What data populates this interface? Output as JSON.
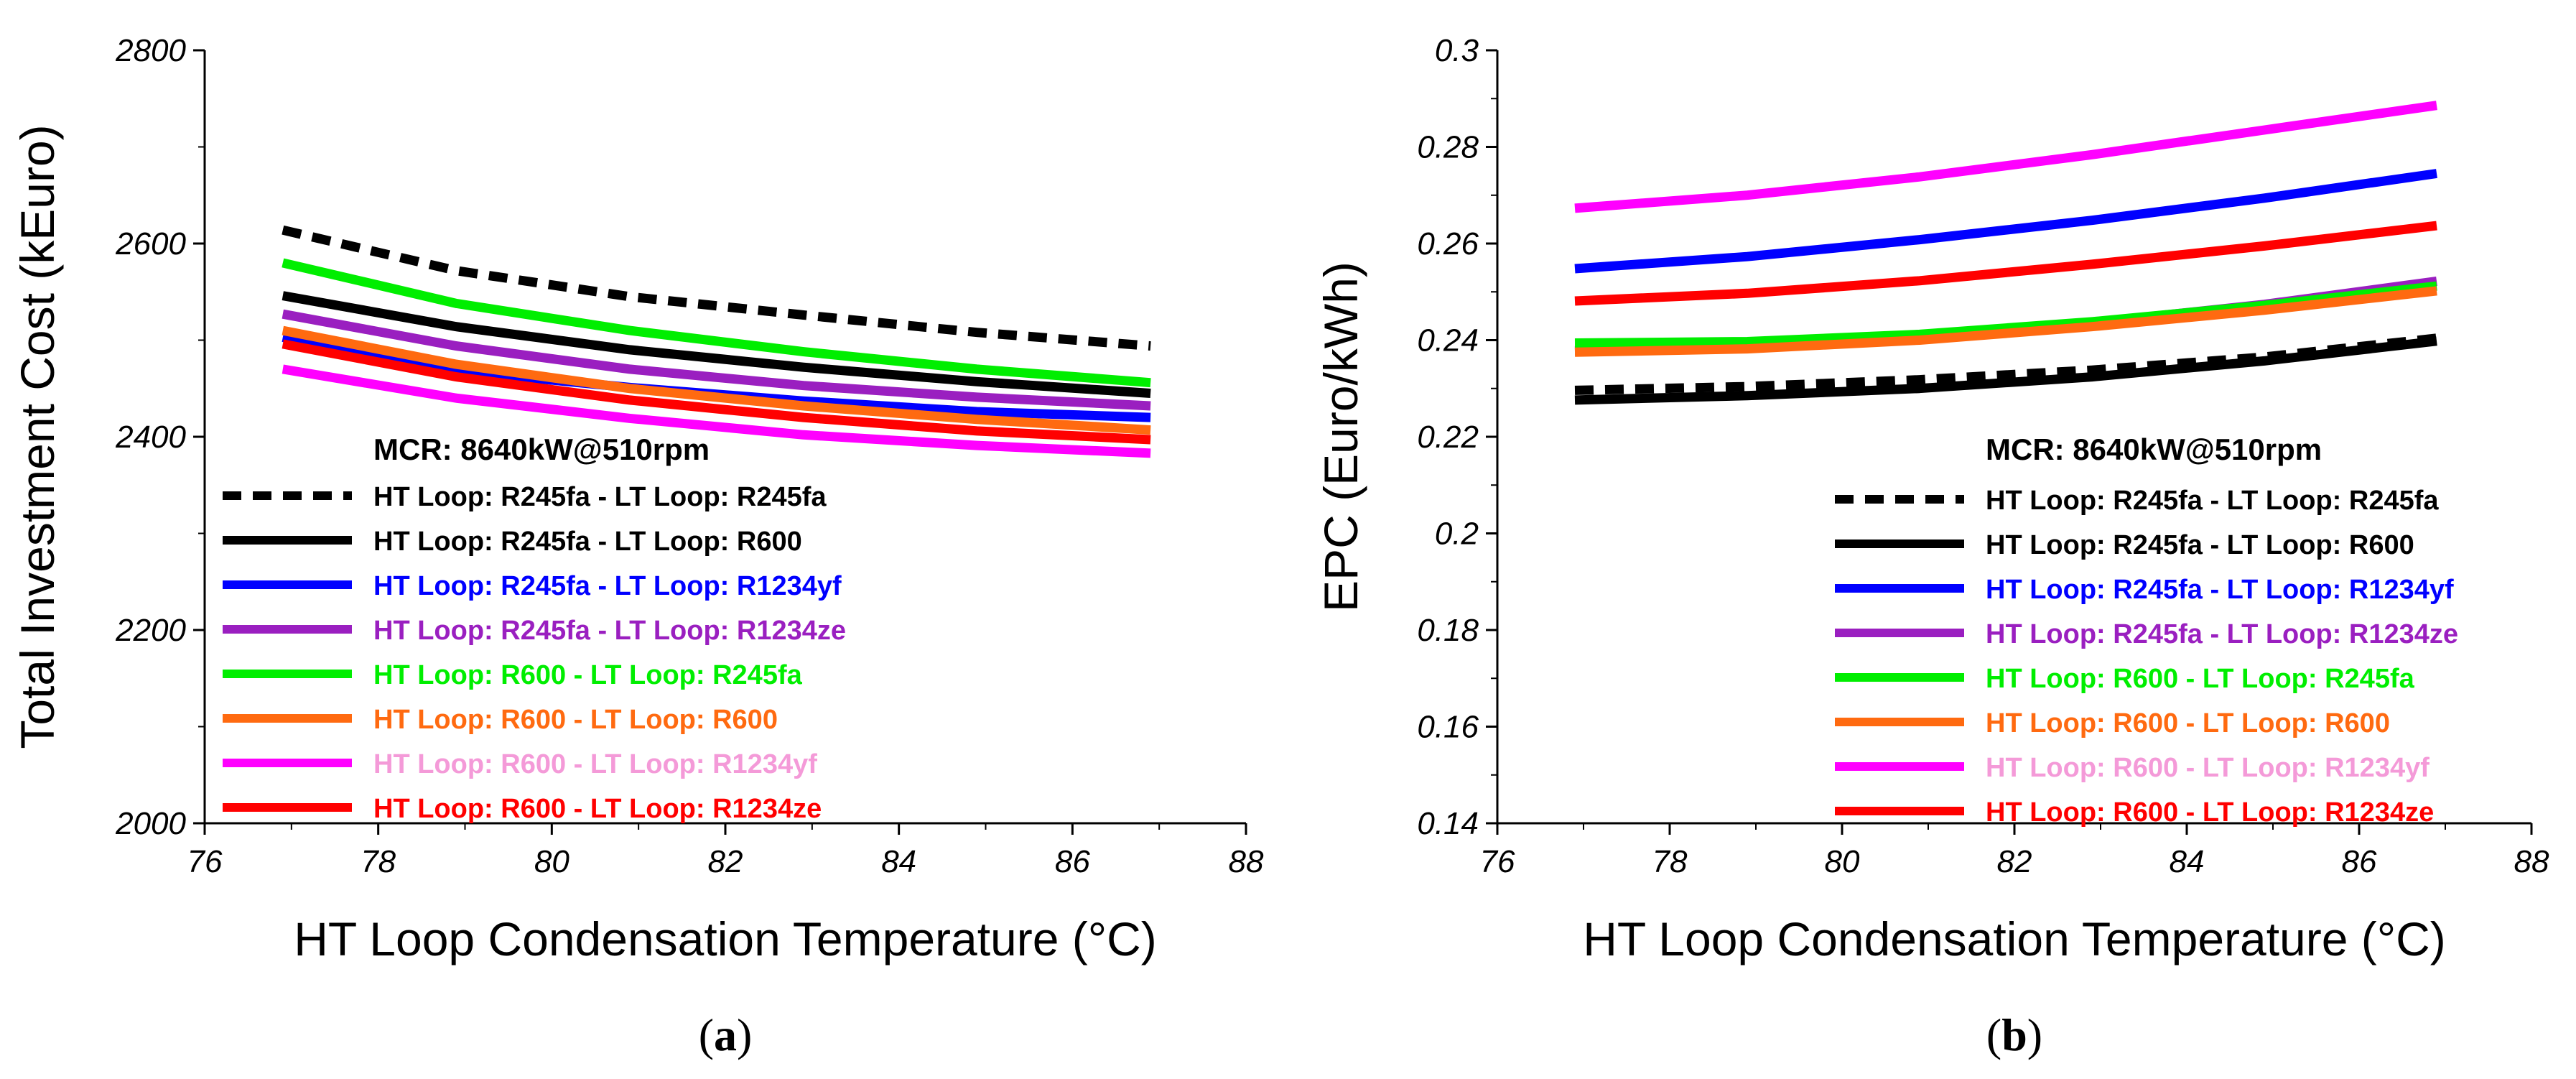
{
  "chart_data": [
    {
      "type": "line",
      "panel_label": "a",
      "xlabel": "HT Loop Condensation Temperature (°C)",
      "ylabel": "Total Investment Cost (kEuro)",
      "xlim": [
        76,
        88
      ],
      "ylim": [
        2000,
        2800
      ],
      "xticks": [
        "76",
        "78",
        "80",
        "82",
        "84",
        "86",
        "88"
      ],
      "yticks": [
        "2000",
        "2200",
        "2400",
        "2600",
        "2800"
      ],
      "x": [
        76.9,
        78.9,
        80.9,
        82.9,
        84.9,
        86.9
      ],
      "legend_title": "MCR: 8640kW@510rpm",
      "legend_position": "bottom-left",
      "series": [
        {
          "name": "HT Loop: R245fa - LT Loop: R245fa",
          "color": "#000000",
          "dash": true,
          "values": [
            2614,
            2572,
            2545,
            2526,
            2508,
            2494
          ]
        },
        {
          "name": "HT Loop: R245fa - LT Loop: R600",
          "color": "#000000",
          "dash": false,
          "values": [
            2546,
            2514,
            2490,
            2472,
            2457,
            2445
          ]
        },
        {
          "name": "HT Loop: R245fa - LT Loop: R1234yf",
          "color": "#0000ff",
          "dash": false,
          "values": [
            2503,
            2468,
            2451,
            2437,
            2426,
            2420
          ]
        },
        {
          "name": "HT Loop: R245fa - LT Loop: R1234ze",
          "color": "#9a1fc0",
          "dash": false,
          "values": [
            2527,
            2494,
            2470,
            2453,
            2441,
            2432
          ]
        },
        {
          "name": "HT Loop: R600 - LT Loop: R245fa",
          "color": "#00ee00",
          "dash": false,
          "values": [
            2580,
            2538,
            2510,
            2488,
            2470,
            2456
          ]
        },
        {
          "name": "HT Loop: R600 - LT Loop: R600",
          "color": "#ff6a10",
          "dash": false,
          "values": [
            2510,
            2475,
            2450,
            2432,
            2418,
            2407
          ]
        },
        {
          "name": "HT Loop: R600 - LT Loop: R1234yf",
          "color": "#ff00ff",
          "dash": false,
          "legend_text_color": "#f49ad8",
          "values": [
            2470,
            2440,
            2419,
            2402,
            2391,
            2383
          ]
        },
        {
          "name": "HT Loop: R600 - LT Loop: R1234ze",
          "color": "#ff0000",
          "dash": false,
          "values": [
            2496,
            2462,
            2438,
            2420,
            2406,
            2397
          ]
        }
      ]
    },
    {
      "type": "line",
      "panel_label": "b",
      "xlabel": "HT Loop Condensation Temperature (°C)",
      "ylabel": "EPC (Euro/kWh)",
      "xlim": [
        76,
        88
      ],
      "ylim": [
        0.14,
        0.3
      ],
      "xticks": [
        "76",
        "78",
        "80",
        "82",
        "84",
        "86",
        "88"
      ],
      "yticks": [
        "0.14",
        "0.16",
        "0.18",
        "0.2",
        "0.22",
        "0.24",
        "0.26",
        "0.28",
        "0.3"
      ],
      "x": [
        76.9,
        78.9,
        80.9,
        82.9,
        84.9,
        86.9
      ],
      "legend_title": "MCR: 8640kW@510rpm",
      "legend_position": "bottom-right",
      "series": [
        {
          "name": "HT Loop: R245fa - LT Loop: R245fa",
          "color": "#000000",
          "dash": true,
          "values": [
            0.2296,
            0.2304,
            0.2318,
            0.2338,
            0.2365,
            0.2404
          ]
        },
        {
          "name": "HT Loop: R245fa - LT Loop: R600",
          "color": "#000000",
          "dash": false,
          "values": [
            0.2276,
            0.2285,
            0.23,
            0.2324,
            0.2357,
            0.2398
          ]
        },
        {
          "name": "HT Loop: R245fa - LT Loop: R1234yf",
          "color": "#0000ff",
          "dash": false,
          "values": [
            0.2548,
            0.2573,
            0.2608,
            0.2648,
            0.2694,
            0.2745
          ]
        },
        {
          "name": "HT Loop: R245fa - LT Loop: R1234ze",
          "color": "#9a1fc0",
          "dash": false,
          "values": [
            0.2378,
            0.2386,
            0.2406,
            0.2436,
            0.2474,
            0.2522
          ]
        },
        {
          "name": "HT Loop: R600 - LT Loop: R245fa",
          "color": "#00ee00",
          "dash": false,
          "values": [
            0.2394,
            0.2397,
            0.2412,
            0.2438,
            0.2472,
            0.2512
          ]
        },
        {
          "name": "HT Loop: R600 - LT Loop: R600",
          "color": "#ff6a10",
          "dash": false,
          "values": [
            0.2375,
            0.2382,
            0.24,
            0.2428,
            0.2462,
            0.2502
          ]
        },
        {
          "name": "HT Loop: R600 - LT Loop: R1234yf",
          "color": "#ff00ff",
          "dash": false,
          "legend_text_color": "#f49ad8",
          "values": [
            0.2673,
            0.27,
            0.2738,
            0.2784,
            0.2835,
            0.2886
          ]
        },
        {
          "name": "HT Loop: R600 - LT Loop: R1234ze",
          "color": "#ff0000",
          "dash": false,
          "values": [
            0.2481,
            0.2497,
            0.2523,
            0.2557,
            0.2595,
            0.2637
          ]
        }
      ]
    }
  ]
}
